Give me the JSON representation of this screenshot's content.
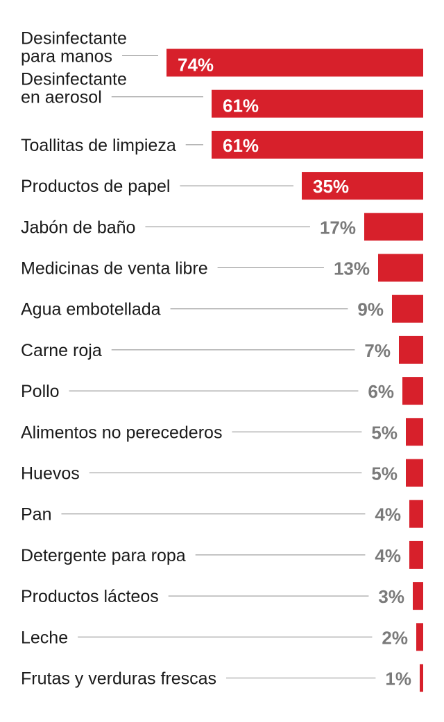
{
  "chart_data": {
    "type": "bar",
    "orientation": "horizontal",
    "title": "",
    "xlabel": "",
    "ylabel": "",
    "xlim": [
      0,
      74
    ],
    "grid": false,
    "value_suffix": "%",
    "colors": {
      "bar": "#d7202b",
      "label_inside": "#ffffff",
      "label_outside": "#7a7a7a",
      "leader": "#8a8a8a",
      "text": "#1a1a1a"
    },
    "categories": [
      [
        "Desinfectante",
        "para manos"
      ],
      [
        "Desinfectante",
        "en aerosol"
      ],
      [
        "Toallitas de limpieza"
      ],
      [
        "Productos de papel"
      ],
      [
        "Jabón de baño"
      ],
      [
        "Medicinas de venta libre"
      ],
      [
        "Agua embotellada"
      ],
      [
        "Carne roja"
      ],
      [
        "Pollo"
      ],
      [
        "Alimentos no perecederos"
      ],
      [
        "Huevos"
      ],
      [
        "Pan"
      ],
      [
        "Detergente para ropa"
      ],
      [
        "Productos lácteos"
      ],
      [
        "Leche"
      ],
      [
        "Frutas y verduras frescas"
      ]
    ],
    "values": [
      74,
      61,
      61,
      35,
      17,
      13,
      9,
      7,
      6,
      5,
      5,
      4,
      4,
      3,
      2,
      1
    ]
  }
}
